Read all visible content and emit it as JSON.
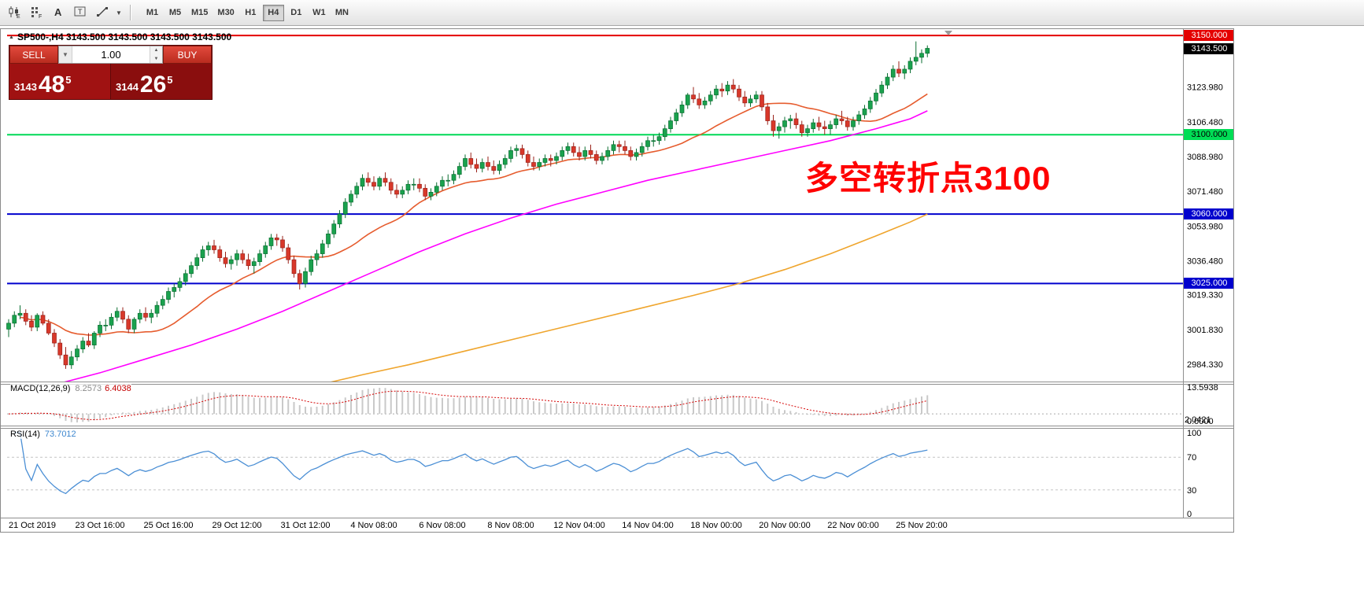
{
  "toolbar": {
    "icon_names": [
      "candlestick-tool-icon",
      "indicator-grid-icon",
      "text-label-tool-icon",
      "text-frame-tool-icon",
      "line-tool-icon",
      "line-tool-caret-icon"
    ],
    "timeframes": [
      "M1",
      "M5",
      "M15",
      "M30",
      "H1",
      "H4",
      "D1",
      "W1",
      "MN"
    ],
    "active_timeframe": "H4"
  },
  "trade_panel": {
    "sell_label": "SELL",
    "buy_label": "BUY",
    "volume": "1.00",
    "bid_small": "3143",
    "bid_big": "48",
    "bid_sup": "5",
    "ask_small": "3144",
    "ask_big": "26",
    "ask_sup": "5"
  },
  "chart": {
    "symbol_ohlc": "SP500-,H4  3143.500 3143.500 3143.500 3143.500",
    "annotation": "多空转折点3100",
    "current_price_label": "3143.500"
  },
  "chart_data": {
    "type": "candlestick",
    "symbol": "SP500-",
    "timeframe": "H4",
    "ylim": [
      2976.4,
      3153.2
    ],
    "price_axis_ticks": [
      "3123.980",
      "3106.480",
      "3088.980",
      "3071.480",
      "3053.980",
      "3036.480",
      "3019.330",
      "3001.830",
      "2984.330"
    ],
    "time_axis_labels": [
      "21 Oct 2019",
      "23 Oct 16:00",
      "25 Oct 16:00",
      "29 Oct 12:00",
      "31 Oct 12:00",
      "4 Nov 08:00",
      "6 Nov 08:00",
      "8 Nov 08:00",
      "12 Nov 04:00",
      "14 Nov 04:00",
      "18 Nov 00:00",
      "20 Nov 00:00",
      "22 Nov 00:00",
      "25 Nov 20:00"
    ],
    "levels": [
      {
        "price": 3150.0,
        "label": "3150.000",
        "color": "#e40000"
      },
      {
        "price": 3100.0,
        "label": "3100.000",
        "color": "#00d957"
      },
      {
        "price": 3060.0,
        "label": "3060.000",
        "color": "#0000cd"
      },
      {
        "price": 3025.0,
        "label": "3025.000",
        "color": "#0000cd"
      }
    ],
    "colors": {
      "up": "#1aa24e",
      "up_dark": "#0a6e31",
      "down": "#d8382a",
      "down_dark": "#9a221a",
      "ma_fast": "#e65c2e",
      "ma_mid": "#ff00ff",
      "ma_slow": "#efa52d",
      "macd_bar": "#c9c9c9",
      "macd_signal": "#d40000",
      "rsi": "#4b8fd5"
    },
    "ma_fast_period": 20,
    "ma_mid_points": [
      [
        0,
        2969
      ],
      [
        8,
        2974
      ],
      [
        16,
        2980
      ],
      [
        24,
        2987
      ],
      [
        32,
        2994
      ],
      [
        40,
        3002
      ],
      [
        48,
        3011
      ],
      [
        56,
        3021
      ],
      [
        64,
        3031
      ],
      [
        72,
        3041
      ],
      [
        80,
        3050
      ],
      [
        88,
        3058
      ],
      [
        96,
        3065
      ],
      [
        104,
        3071
      ],
      [
        112,
        3077
      ],
      [
        120,
        3082
      ],
      [
        128,
        3087
      ],
      [
        136,
        3092
      ],
      [
        144,
        3097
      ],
      [
        152,
        3103
      ],
      [
        158,
        3108
      ],
      [
        161,
        3112
      ]
    ],
    "ma_slow_points": [
      [
        50,
        2972
      ],
      [
        56,
        2975
      ],
      [
        62,
        2979
      ],
      [
        70,
        2984
      ],
      [
        80,
        2991
      ],
      [
        90,
        2998
      ],
      [
        100,
        3005
      ],
      [
        110,
        3012
      ],
      [
        120,
        3019
      ],
      [
        128,
        3025
      ],
      [
        136,
        3032
      ],
      [
        144,
        3040
      ],
      [
        152,
        3049
      ],
      [
        158,
        3056
      ],
      [
        161,
        3060
      ]
    ],
    "macd": {
      "label": "MACD(12,26,9)",
      "value_main": "8.2573",
      "value_signal": "6.4038",
      "axis_max": "13.5938",
      "axis_zero": "0.0000",
      "axis_min": "2.0421"
    },
    "rsi": {
      "label": "RSI(14)",
      "value": "73.7012",
      "axis": [
        "100",
        "70",
        "30",
        "0"
      ]
    },
    "candles": [
      [
        3002,
        3007,
        2998,
        3005
      ],
      [
        3005,
        3011,
        3003,
        3009
      ],
      [
        3009,
        3014,
        3007,
        3010
      ],
      [
        3010,
        3012,
        3004,
        3006
      ],
      [
        3006,
        3009,
        3001,
        3003
      ],
      [
        3003,
        3010,
        3001,
        3009
      ],
      [
        3009,
        3011,
        3004,
        3005
      ],
      [
        3005,
        3007,
        2999,
        3000
      ],
      [
        3000,
        3002,
        2993,
        2995
      ],
      [
        2995,
        2997,
        2987,
        2989
      ],
      [
        2989,
        2993,
        2982,
        2984
      ],
      [
        2984,
        2991,
        2982,
        2988
      ],
      [
        2988,
        2994,
        2986,
        2992
      ],
      [
        2992,
        2998,
        2990,
        2996
      ],
      [
        2996,
        3000,
        2993,
        2994
      ],
      [
        2994,
        3001,
        2992,
        3000
      ],
      [
        3000,
        3006,
        2998,
        3004
      ],
      [
        3004,
        3007,
        3001,
        3004
      ],
      [
        3004,
        3010,
        3002,
        3008
      ],
      [
        3008,
        3013,
        3006,
        3011
      ],
      [
        3011,
        3013,
        3005,
        3007
      ],
      [
        3007,
        3009,
        3000,
        3002
      ],
      [
        3002,
        3008,
        3000,
        3007
      ],
      [
        3007,
        3012,
        3005,
        3010
      ],
      [
        3010,
        3013,
        3006,
        3008
      ],
      [
        3008,
        3012,
        3005,
        3010
      ],
      [
        3010,
        3016,
        3008,
        3014
      ],
      [
        3014,
        3019,
        3012,
        3017
      ],
      [
        3017,
        3023,
        3015,
        3021
      ],
      [
        3021,
        3025,
        3018,
        3023
      ],
      [
        3023,
        3028,
        3021,
        3026
      ],
      [
        3026,
        3032,
        3024,
        3030
      ],
      [
        3030,
        3036,
        3028,
        3034
      ],
      [
        3034,
        3040,
        3032,
        3038
      ],
      [
        3038,
        3044,
        3036,
        3042
      ],
      [
        3042,
        3046,
        3039,
        3044
      ],
      [
        3044,
        3047,
        3040,
        3042
      ],
      [
        3042,
        3044,
        3036,
        3038
      ],
      [
        3038,
        3041,
        3033,
        3035
      ],
      [
        3035,
        3039,
        3032,
        3037
      ],
      [
        3037,
        3042,
        3034,
        3040
      ],
      [
        3040,
        3042,
        3035,
        3037
      ],
      [
        3037,
        3040,
        3032,
        3034
      ],
      [
        3034,
        3038,
        3030,
        3036
      ],
      [
        3036,
        3042,
        3034,
        3040
      ],
      [
        3040,
        3046,
        3038,
        3044
      ],
      [
        3044,
        3050,
        3042,
        3048
      ],
      [
        3048,
        3050,
        3044,
        3047
      ],
      [
        3047,
        3049,
        3041,
        3043
      ],
      [
        3043,
        3045,
        3035,
        3037
      ],
      [
        3037,
        3039,
        3028,
        3030
      ],
      [
        3030,
        3032,
        3022,
        3025
      ],
      [
        3025,
        3033,
        3023,
        3031
      ],
      [
        3031,
        3039,
        3029,
        3037
      ],
      [
        3037,
        3042,
        3034,
        3040
      ],
      [
        3040,
        3047,
        3038,
        3045
      ],
      [
        3045,
        3052,
        3043,
        3050
      ],
      [
        3050,
        3057,
        3048,
        3055
      ],
      [
        3055,
        3062,
        3053,
        3060
      ],
      [
        3060,
        3068,
        3058,
        3066
      ],
      [
        3066,
        3072,
        3064,
        3070
      ],
      [
        3070,
        3076,
        3068,
        3074
      ],
      [
        3074,
        3080,
        3072,
        3078
      ],
      [
        3078,
        3081,
        3074,
        3076
      ],
      [
        3076,
        3079,
        3072,
        3074
      ],
      [
        3074,
        3079,
        3072,
        3078
      ],
      [
        3078,
        3081,
        3074,
        3076
      ],
      [
        3076,
        3078,
        3070,
        3072
      ],
      [
        3072,
        3075,
        3068,
        3070
      ],
      [
        3070,
        3074,
        3068,
        3072
      ],
      [
        3072,
        3077,
        3070,
        3075
      ],
      [
        3075,
        3078,
        3072,
        3075
      ],
      [
        3075,
        3078,
        3071,
        3073
      ],
      [
        3073,
        3075,
        3067,
        3069
      ],
      [
        3069,
        3073,
        3067,
        3071
      ],
      [
        3071,
        3076,
        3069,
        3074
      ],
      [
        3074,
        3079,
        3072,
        3077
      ],
      [
        3077,
        3080,
        3074,
        3077
      ],
      [
        3077,
        3082,
        3075,
        3080
      ],
      [
        3080,
        3086,
        3078,
        3084
      ],
      [
        3084,
        3090,
        3082,
        3088
      ],
      [
        3088,
        3091,
        3083,
        3085
      ],
      [
        3085,
        3088,
        3081,
        3083
      ],
      [
        3083,
        3088,
        3081,
        3086
      ],
      [
        3086,
        3089,
        3082,
        3084
      ],
      [
        3084,
        3087,
        3080,
        3082
      ],
      [
        3082,
        3087,
        3080,
        3085
      ],
      [
        3085,
        3090,
        3083,
        3088
      ],
      [
        3088,
        3094,
        3086,
        3092
      ],
      [
        3092,
        3095,
        3089,
        3093
      ],
      [
        3093,
        3095,
        3088,
        3090
      ],
      [
        3090,
        3092,
        3084,
        3086
      ],
      [
        3086,
        3089,
        3082,
        3084
      ],
      [
        3084,
        3088,
        3082,
        3086
      ],
      [
        3086,
        3090,
        3084,
        3088
      ],
      [
        3088,
        3090,
        3084,
        3087
      ],
      [
        3087,
        3091,
        3085,
        3089
      ],
      [
        3089,
        3094,
        3087,
        3092
      ],
      [
        3092,
        3096,
        3090,
        3094
      ],
      [
        3094,
        3096,
        3089,
        3091
      ],
      [
        3091,
        3094,
        3087,
        3089
      ],
      [
        3089,
        3094,
        3087,
        3092
      ],
      [
        3092,
        3095,
        3088,
        3090
      ],
      [
        3090,
        3092,
        3085,
        3087
      ],
      [
        3087,
        3091,
        3085,
        3089
      ],
      [
        3089,
        3094,
        3087,
        3092
      ],
      [
        3092,
        3097,
        3090,
        3095
      ],
      [
        3095,
        3097,
        3091,
        3094
      ],
      [
        3094,
        3097,
        3090,
        3092
      ],
      [
        3092,
        3094,
        3087,
        3089
      ],
      [
        3089,
        3093,
        3087,
        3091
      ],
      [
        3091,
        3096,
        3089,
        3094
      ],
      [
        3094,
        3099,
        3092,
        3097
      ],
      [
        3097,
        3100,
        3094,
        3097
      ],
      [
        3097,
        3101,
        3095,
        3099
      ],
      [
        3099,
        3105,
        3097,
        3103
      ],
      [
        3103,
        3109,
        3101,
        3107
      ],
      [
        3107,
        3113,
        3105,
        3111
      ],
      [
        3111,
        3117,
        3109,
        3115
      ],
      [
        3115,
        3121,
        3113,
        3120
      ],
      [
        3120,
        3124,
        3116,
        3118
      ],
      [
        3118,
        3121,
        3113,
        3115
      ],
      [
        3115,
        3119,
        3113,
        3117
      ],
      [
        3117,
        3122,
        3115,
        3120
      ],
      [
        3120,
        3125,
        3118,
        3123
      ],
      [
        3123,
        3126,
        3119,
        3122
      ],
      [
        3122,
        3127,
        3120,
        3125
      ],
      [
        3125,
        3128,
        3121,
        3123
      ],
      [
        3123,
        3125,
        3117,
        3119
      ],
      [
        3119,
        3122,
        3114,
        3116
      ],
      [
        3116,
        3120,
        3114,
        3118
      ],
      [
        3118,
        3122,
        3116,
        3120
      ],
      [
        3120,
        3122,
        3112,
        3114
      ],
      [
        3114,
        3116,
        3105,
        3107
      ],
      [
        3107,
        3110,
        3099,
        3102
      ],
      [
        3102,
        3106,
        3098,
        3104
      ],
      [
        3104,
        3109,
        3101,
        3107
      ],
      [
        3107,
        3110,
        3103,
        3108
      ],
      [
        3108,
        3111,
        3103,
        3105
      ],
      [
        3105,
        3107,
        3099,
        3101
      ],
      [
        3101,
        3105,
        3099,
        3103
      ],
      [
        3103,
        3108,
        3101,
        3106
      ],
      [
        3106,
        3109,
        3102,
        3104
      ],
      [
        3104,
        3107,
        3100,
        3103
      ],
      [
        3103,
        3107,
        3100,
        3105
      ],
      [
        3105,
        3110,
        3103,
        3108
      ],
      [
        3108,
        3112,
        3105,
        3107
      ],
      [
        3107,
        3109,
        3102,
        3104
      ],
      [
        3104,
        3109,
        3102,
        3107
      ],
      [
        3107,
        3112,
        3105,
        3110
      ],
      [
        3110,
        3115,
        3108,
        3113
      ],
      [
        3113,
        3119,
        3111,
        3117
      ],
      [
        3117,
        3123,
        3115,
        3121
      ],
      [
        3121,
        3127,
        3119,
        3125
      ],
      [
        3125,
        3131,
        3123,
        3129
      ],
      [
        3129,
        3135,
        3127,
        3133
      ],
      [
        3133,
        3137,
        3129,
        3131
      ],
      [
        3131,
        3135,
        3128,
        3133
      ],
      [
        3133,
        3139,
        3131,
        3137
      ],
      [
        3137,
        3147,
        3135,
        3139
      ],
      [
        3139,
        3143,
        3136,
        3141
      ],
      [
        3141,
        3145,
        3139,
        3143.5
      ]
    ]
  }
}
